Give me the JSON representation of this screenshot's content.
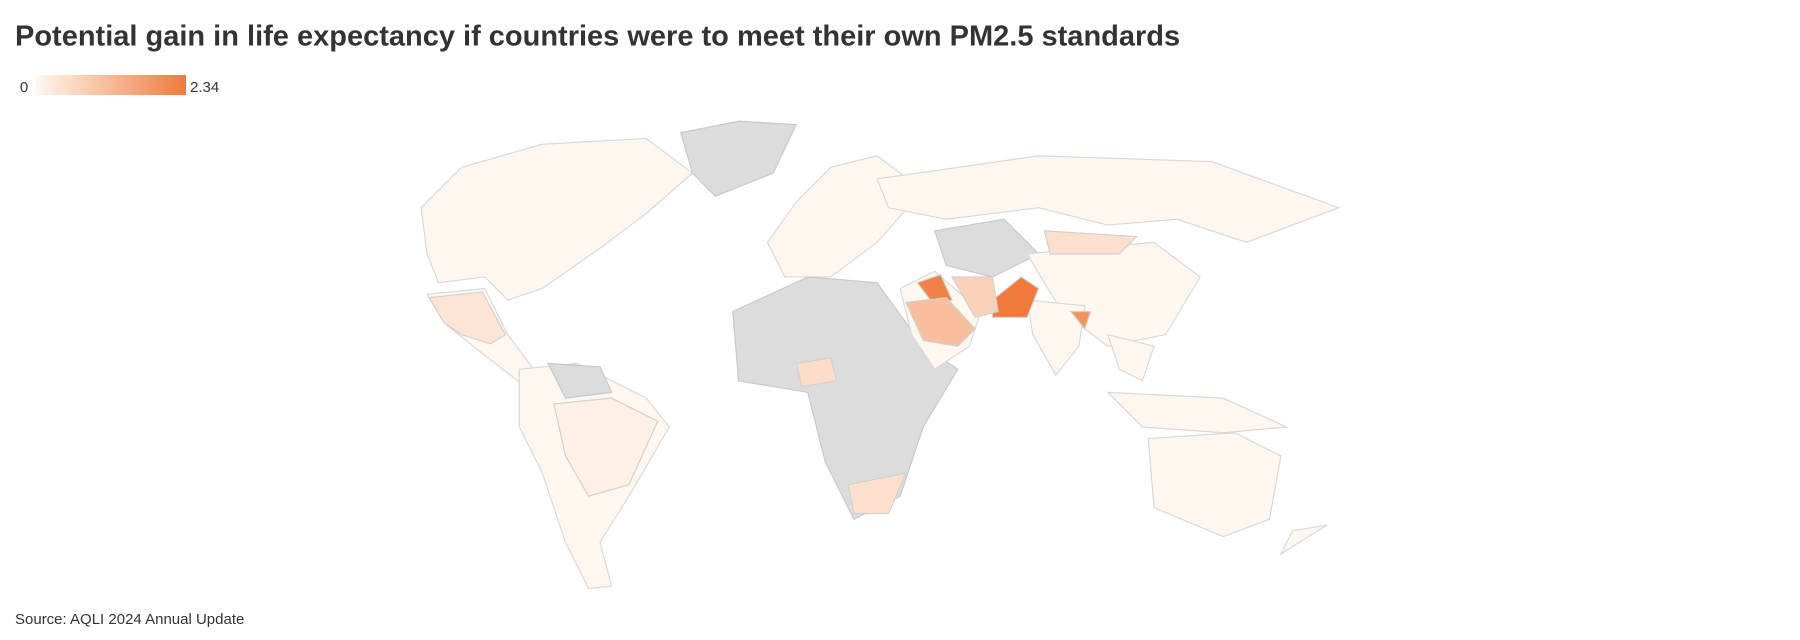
{
  "chart_data": {
    "type": "choropleth",
    "title": "Potential gain in life expectancy if countries were to meet their own PM2.5 standards",
    "scale": {
      "min": 0,
      "max": 2.34,
      "colors": [
        "#fff8f0",
        "#ef7a3c"
      ]
    },
    "values": [
      2.34,
      2.2,
      1.9,
      1.05,
      0.7,
      0.45,
      0.5,
      0.45,
      0.35,
      0.15
    ],
    "source": "Source: AQLI 2024 Annual Update"
  }
}
